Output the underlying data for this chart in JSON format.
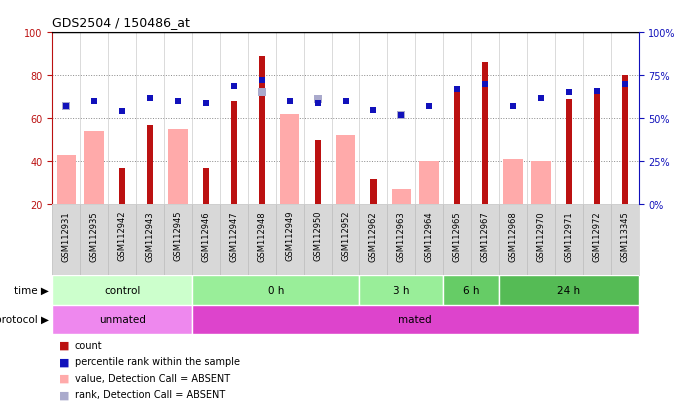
{
  "title": "GDS2504 / 150486_at",
  "samples": [
    "GSM112931",
    "GSM112935",
    "GSM112942",
    "GSM112943",
    "GSM112945",
    "GSM112946",
    "GSM112947",
    "GSM112948",
    "GSM112949",
    "GSM112950",
    "GSM112952",
    "GSM112962",
    "GSM112963",
    "GSM112964",
    "GSM112965",
    "GSM112967",
    "GSM112968",
    "GSM112970",
    "GSM112971",
    "GSM112972",
    "GSM113345"
  ],
  "red_bar_values": [
    null,
    null,
    37,
    57,
    null,
    37,
    68,
    89,
    null,
    50,
    null,
    32,
    null,
    null,
    72,
    86,
    null,
    null,
    69,
    73,
    80
  ],
  "pink_bar_values": [
    43,
    54,
    null,
    null,
    55,
    null,
    null,
    null,
    62,
    null,
    52,
    null,
    27,
    40,
    null,
    null,
    41,
    40,
    null,
    null,
    null
  ],
  "blue_sq_values": [
    57,
    60,
    54,
    62,
    60,
    59,
    69,
    72,
    60,
    59,
    60,
    55,
    52,
    57,
    67,
    70,
    57,
    62,
    65,
    66,
    70
  ],
  "light_blue_sq_values": [
    57,
    null,
    null,
    null,
    null,
    null,
    null,
    65,
    null,
    61,
    null,
    null,
    52,
    null,
    null,
    null,
    null,
    null,
    null,
    null,
    null
  ],
  "time_groups": [
    {
      "label": "control",
      "start": 0,
      "end": 5,
      "color": "#ccffcc"
    },
    {
      "label": "0 h",
      "start": 5,
      "end": 11,
      "color": "#88dd88"
    },
    {
      "label": "3 h",
      "start": 11,
      "end": 14,
      "color": "#88dd88"
    },
    {
      "label": "6 h",
      "start": 14,
      "end": 16,
      "color": "#55cc55"
    },
    {
      "label": "24 h",
      "start": 16,
      "end": 21,
      "color": "#55cc55"
    }
  ],
  "protocol_groups": [
    {
      "label": "unmated",
      "start": 0,
      "end": 5,
      "color": "#ee88ee"
    },
    {
      "label": "mated",
      "start": 5,
      "end": 21,
      "color": "#dd55dd"
    }
  ],
  "ylim_left": [
    20,
    100
  ],
  "ylim_right": [
    0,
    100
  ],
  "yticks_left": [
    20,
    40,
    60,
    80,
    100
  ],
  "yticks_right_vals": [
    0,
    25,
    50,
    75,
    100
  ],
  "red_color": "#bb1111",
  "pink_color": "#ffaaaa",
  "blue_color": "#1111bb",
  "light_blue_color": "#aaaacc",
  "bg_fig": "#ffffff"
}
